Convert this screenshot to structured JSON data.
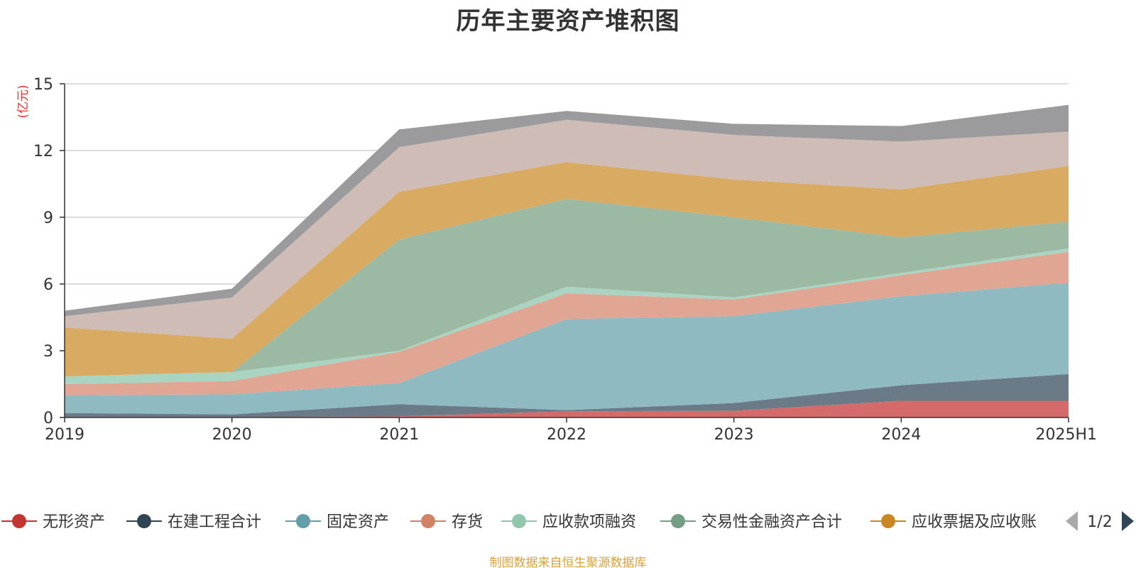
{
  "title": "历年主要资产堆积图",
  "source_note": "制图数据来自恒生聚源数据库",
  "legend_pager": "1/2",
  "chart_data": {
    "type": "area",
    "stacked": true,
    "title": "历年主要资产堆积图",
    "ylabel": "(亿元)",
    "xlabel": "",
    "ylim": [
      0,
      15
    ],
    "yticks": [
      0,
      3,
      6,
      9,
      12,
      15
    ],
    "grid": true,
    "legend_position": "bottom",
    "categories": [
      "2019",
      "2020",
      "2021",
      "2022",
      "2023",
      "2024",
      "2025H1"
    ],
    "series": [
      {
        "name": "无形资产",
        "color": "#d46a6a",
        "marker_color": "#c23531",
        "values": [
          0.02,
          0.02,
          0.05,
          0.28,
          0.3,
          0.75,
          0.75
        ],
        "in_legend": true
      },
      {
        "name": "在建工程合计",
        "color": "#6b7a87",
        "marker_color": "#2f4554",
        "values": [
          0.18,
          0.12,
          0.55,
          0.05,
          0.35,
          0.7,
          1.2
        ],
        "in_legend": true
      },
      {
        "name": "固定资产",
        "color": "#8fbac1",
        "marker_color": "#61a0a8",
        "values": [
          0.8,
          0.9,
          0.95,
          4.1,
          3.9,
          4.0,
          4.1
        ],
        "in_legend": true
      },
      {
        "name": "存货",
        "color": "#e1a693",
        "marker_color": "#d48265",
        "values": [
          0.5,
          0.6,
          1.4,
          1.15,
          0.75,
          0.95,
          1.4
        ],
        "in_legend": true
      },
      {
        "name": "应收款项融资",
        "color": "#a9d4c1",
        "marker_color": "#91c7ae",
        "values": [
          0.35,
          0.4,
          0.05,
          0.3,
          0.1,
          0.1,
          0.15
        ],
        "in_legend": true
      },
      {
        "name": "交易性金融资产合计",
        "color": "#9bb9a3",
        "marker_color": "#749f83",
        "values": [
          0.0,
          0.0,
          5.0,
          3.95,
          3.6,
          1.6,
          1.2
        ],
        "in_legend": true
      },
      {
        "name": "应收票据及应收账",
        "color": "#d9aa62",
        "marker_color": "#ca8622",
        "values": [
          2.2,
          1.5,
          2.15,
          1.65,
          1.7,
          2.15,
          2.5
        ],
        "in_legend": true
      },
      {
        "name": "",
        "color": "#cfbcb6",
        "marker_color": "#bda29a",
        "values": [
          0.5,
          1.85,
          2.0,
          1.9,
          2.0,
          2.15,
          1.55
        ],
        "in_legend": false
      },
      {
        "name": "",
        "color": "#9b9b9e",
        "marker_color": "#6e7074",
        "values": [
          0.25,
          0.4,
          0.8,
          0.4,
          0.5,
          0.7,
          1.2
        ],
        "in_legend": false
      }
    ]
  }
}
